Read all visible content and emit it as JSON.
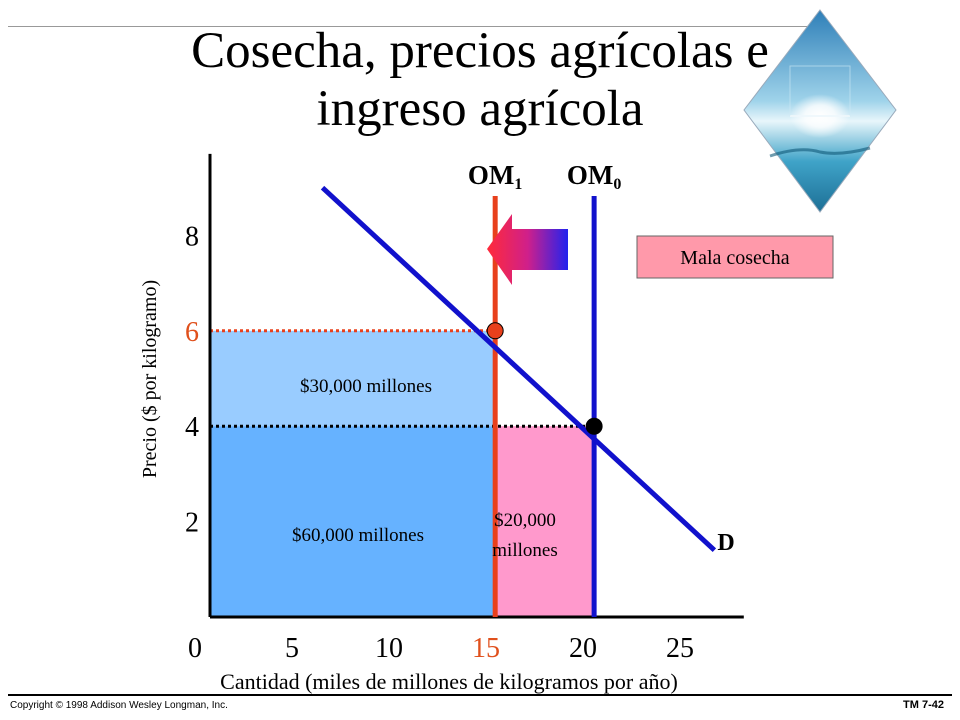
{
  "title": {
    "line1": "Cosecha, precios agrícolas e",
    "line2": "ingreso agrícola"
  },
  "footer": {
    "copyright": "Copyright © 1998 Addison Wesley Longman, Inc.",
    "slide_number": "TM 7-42"
  },
  "colors": {
    "demand": "#1111cc",
    "om0": "#1111cc",
    "om1": "#e8401c",
    "highlight_orange": "#e0501c",
    "area_top": "#99ccff",
    "area_main": "#66b2ff",
    "area_pink": "#ff99cc",
    "callout_bg": "#ff99aa"
  },
  "chart_data": {
    "type": "line",
    "xlabel": "Cantidad (miles de millones de kilogramos por año)",
    "ylabel": "Precio ($ por kilogramo)",
    "xlim": [
      0,
      27
    ],
    "ylim": [
      0,
      9.5
    ],
    "x_ticks": [
      "0",
      "5",
      "10",
      "15",
      "20",
      "25"
    ],
    "x_tick_values": [
      0,
      5,
      10,
      15,
      20,
      25
    ],
    "x_highlight_tick": "15",
    "y_ticks": [
      "2",
      "4",
      "6",
      "8"
    ],
    "y_tick_values": [
      2,
      4,
      6,
      8
    ],
    "y_highlight_tick": "6",
    "demand": {
      "name": "D",
      "x": [
        5.8,
        26
      ],
      "y": [
        9.0,
        1.4
      ]
    },
    "supply_lines": [
      {
        "name": "OM",
        "subscript": "1",
        "x": 14.7,
        "color_key": "om1"
      },
      {
        "name": "OM",
        "subscript": "0",
        "x": 19.8,
        "color_key": "om0"
      }
    ],
    "equilibria": [
      {
        "x": 14.7,
        "y": 6,
        "color_key": "om1"
      },
      {
        "x": 19.8,
        "y": 4,
        "color_key": "black"
      }
    ],
    "areas": [
      {
        "label": "$30,000 millones",
        "x": [
          0,
          14.7
        ],
        "y": [
          4,
          6
        ],
        "color_key": "area_top"
      },
      {
        "label": "$60,000 millones",
        "x": [
          0,
          14.7
        ],
        "y": [
          0,
          4
        ],
        "color_key": "area_main"
      },
      {
        "label_line1": "$20,000",
        "label_line2": "millones",
        "x": [
          14.7,
          19.8
        ],
        "y": [
          0,
          4
        ],
        "color_key": "area_pink"
      }
    ],
    "callout": "Mala cosecha",
    "shift_arrow": {
      "from": "OM0",
      "to": "OM1",
      "direction": "left"
    }
  }
}
